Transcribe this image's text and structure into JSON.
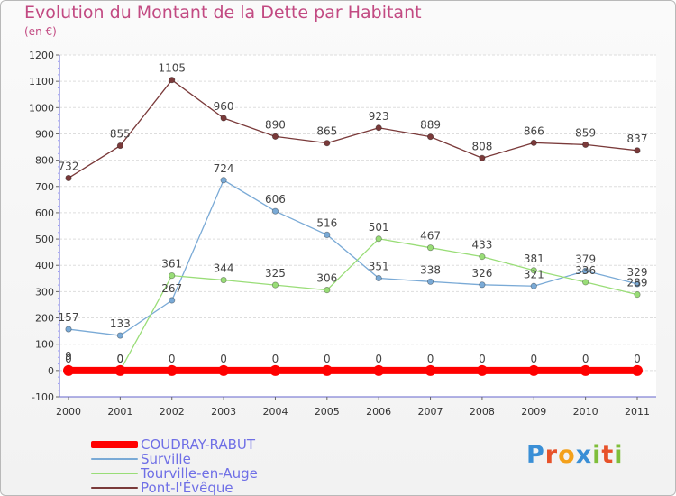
{
  "page": {
    "title": "Evolution du Montant de la Dette par Habitant",
    "unit": "(en €)"
  },
  "logo": {
    "text": "Proxiti",
    "letters": [
      {
        "ch": "P",
        "color": "#3a8fd6"
      },
      {
        "ch": "r",
        "color": "#e7522a"
      },
      {
        "ch": "o",
        "color": "#f4a11b"
      },
      {
        "ch": "x",
        "color": "#3a8fd6"
      },
      {
        "ch": "i",
        "color": "#7fbe3a"
      },
      {
        "ch": "t",
        "color": "#e7522a"
      },
      {
        "ch": "i",
        "color": "#7fbe3a"
      }
    ]
  },
  "chart_data": {
    "type": "line",
    "title": "Evolution du Montant de la Dette par Habitant",
    "ylabel": "(en €)",
    "xlabel": "",
    "ylim": [
      -100,
      1200
    ],
    "yticks": [
      -100,
      0,
      100,
      200,
      300,
      400,
      500,
      600,
      700,
      800,
      900,
      1000,
      1100,
      1200
    ],
    "categories": [
      "2000",
      "2001",
      "2002",
      "2003",
      "2004",
      "2005",
      "2006",
      "2007",
      "2008",
      "2009",
      "2010",
      "2011"
    ],
    "grid": "horizontal",
    "legend_position": "bottom-left",
    "series": [
      {
        "name": "COUDRAY-RABUT",
        "color": "#ff0000",
        "values": [
          0,
          0,
          0,
          0,
          0,
          0,
          0,
          0,
          0,
          0,
          0,
          0
        ],
        "labels": [
          "0",
          "0",
          "0",
          "0",
          "0",
          "0",
          "0",
          "0",
          "0",
          "0",
          "0",
          "0"
        ]
      },
      {
        "name": "Surville",
        "color": "#7aaad6",
        "values": [
          157,
          133,
          267,
          724,
          606,
          516,
          351,
          338,
          326,
          321,
          379,
          329
        ],
        "labels": [
          "157",
          "133",
          "267",
          "724",
          "606",
          "516",
          "351",
          "338",
          "326",
          "321",
          "379",
          "329"
        ]
      },
      {
        "name": "Tourville-en-Auge",
        "color": "#99dd77",
        "values": [
          9,
          0,
          361,
          344,
          325,
          306,
          501,
          467,
          433,
          381,
          336,
          289
        ],
        "labels": [
          "9",
          "0",
          "361",
          "344",
          "325",
          "306",
          "501",
          "467",
          "433",
          "381",
          "336",
          "289"
        ]
      },
      {
        "name": "Pont-l'Évêque",
        "color": "#7a3a3a",
        "values": [
          732,
          855,
          1105,
          960,
          890,
          865,
          923,
          889,
          808,
          866,
          859,
          837
        ],
        "labels": [
          "732",
          "855",
          "1105",
          "960",
          "890",
          "865",
          "923",
          "889",
          "808",
          "866",
          "859",
          "837"
        ]
      }
    ]
  }
}
